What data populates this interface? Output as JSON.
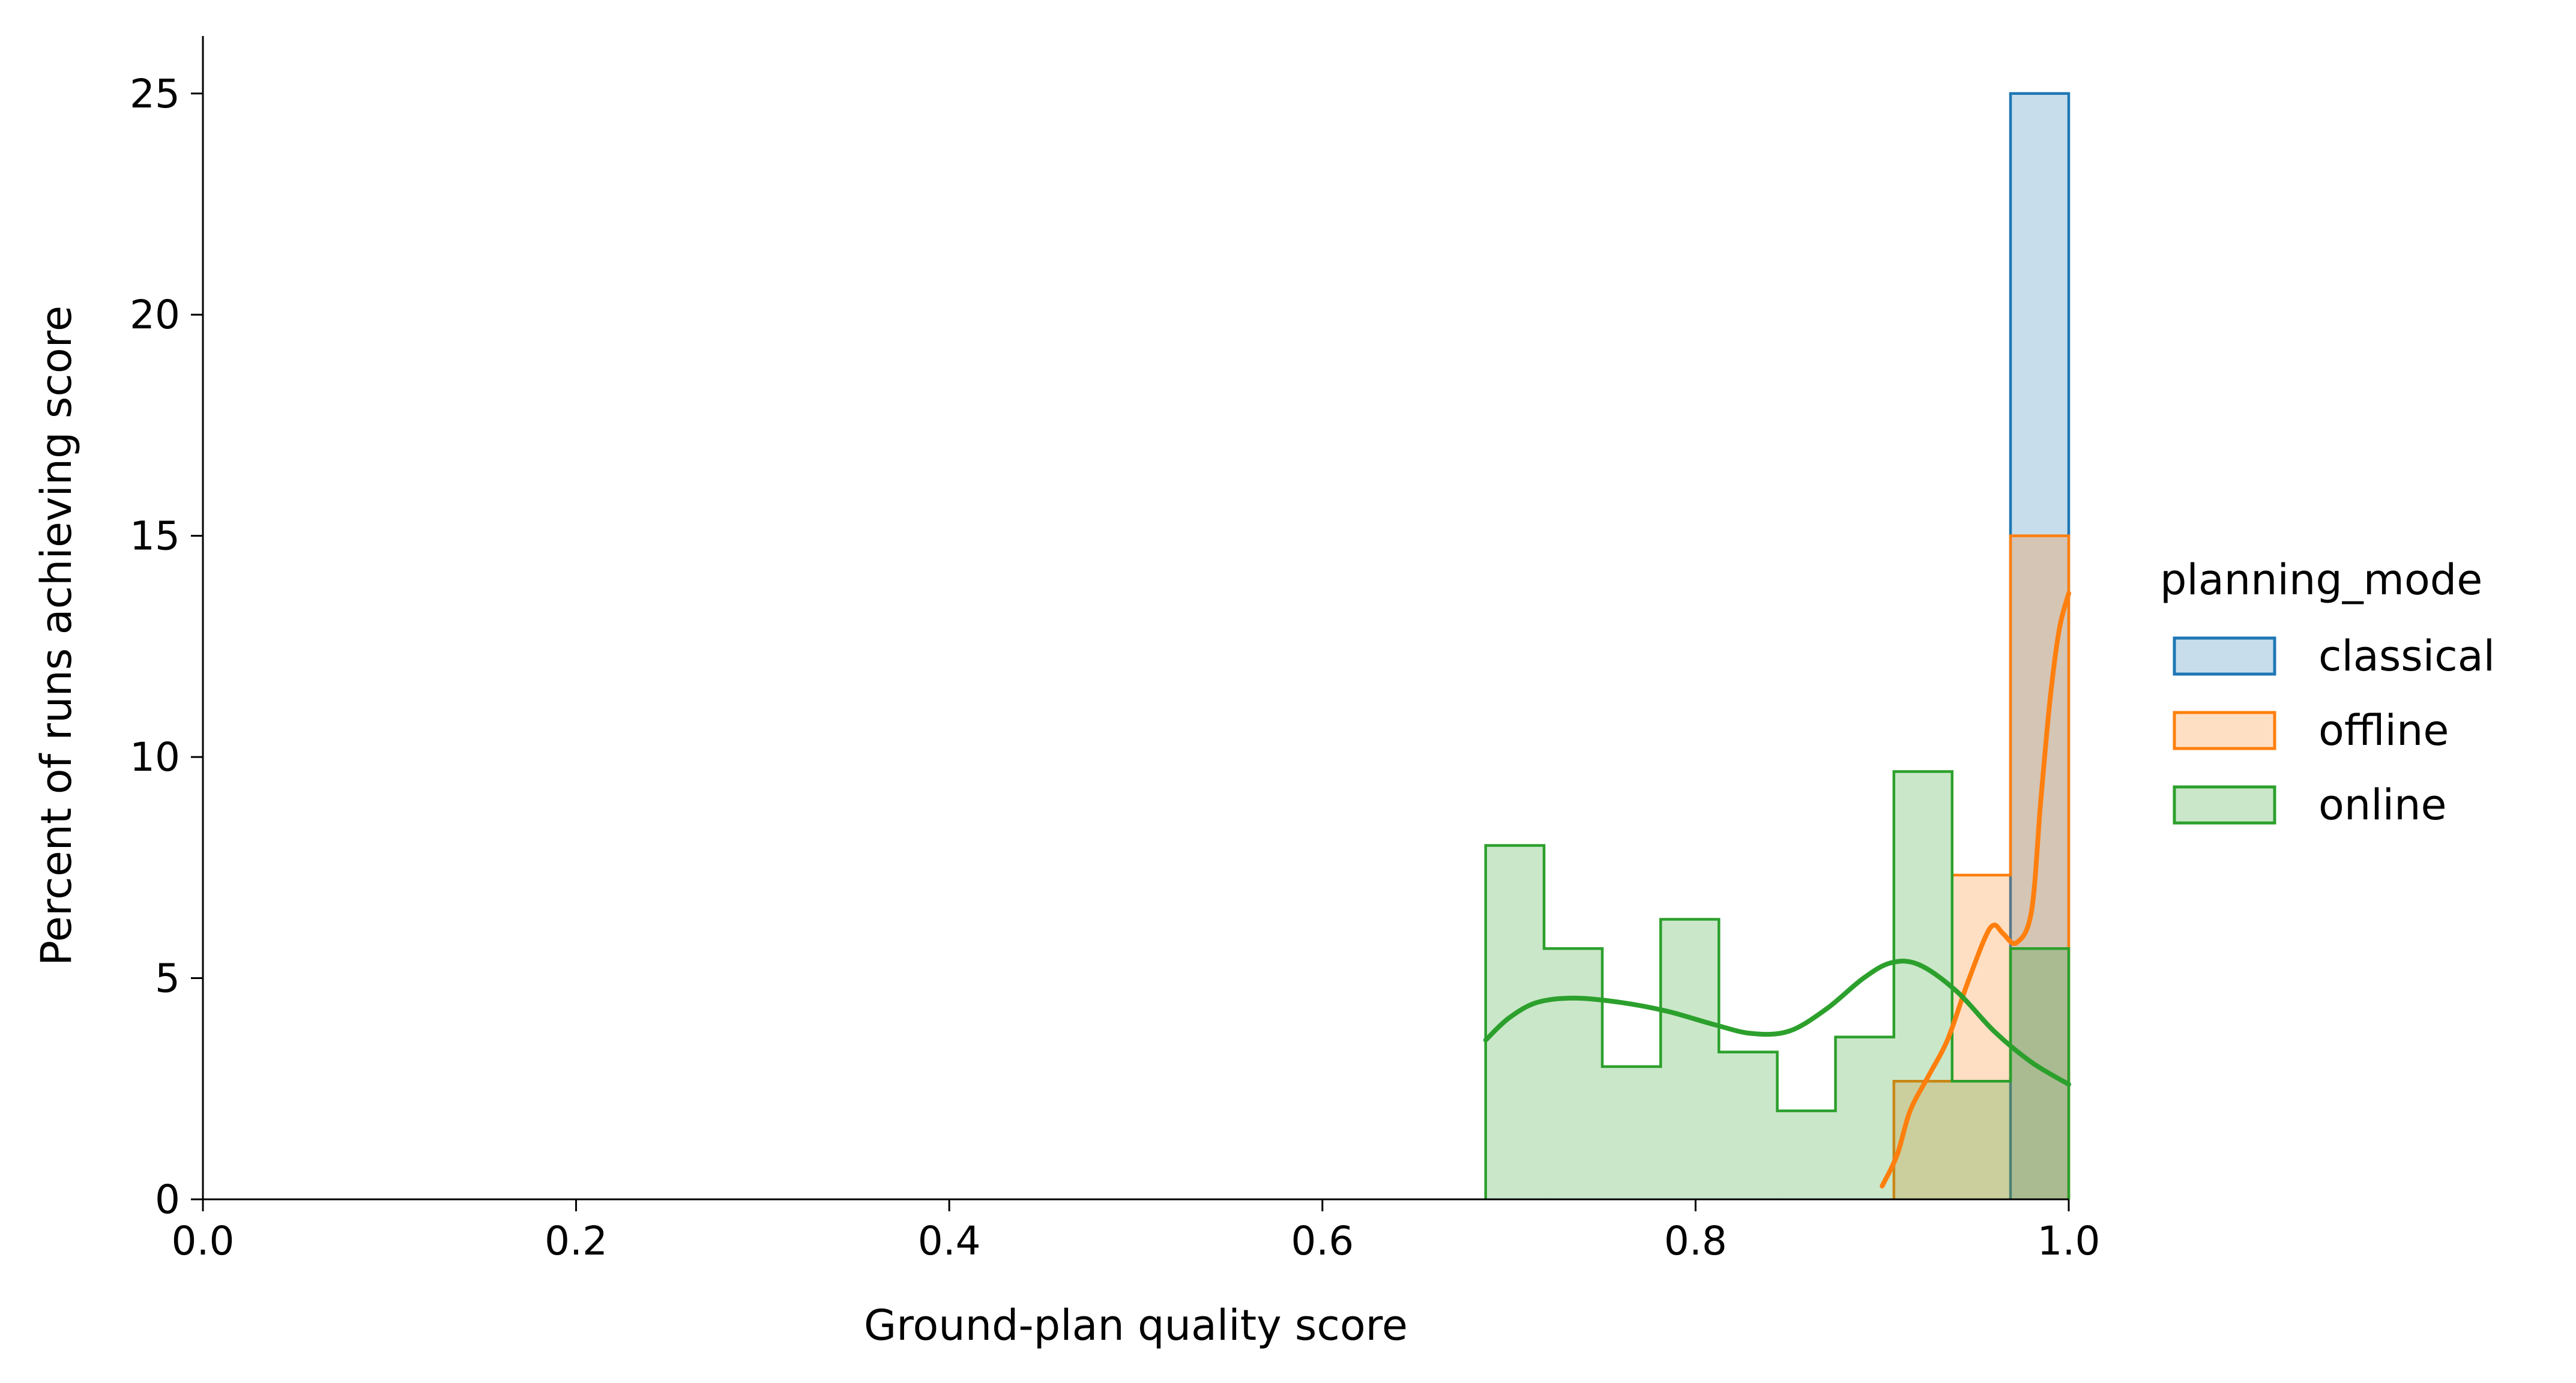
{
  "chart_data": {
    "type": "histogram",
    "xlabel": "Ground-plan quality score",
    "ylabel": "Percent of runs achieving score",
    "xlim": [
      0.0,
      1.0
    ],
    "ylim": [
      0,
      26.3
    ],
    "xticks": [
      "0.0",
      "0.2",
      "0.4",
      "0.6",
      "0.8",
      "1.0"
    ],
    "yticks": [
      "0",
      "5",
      "10",
      "15",
      "20",
      "25"
    ],
    "xtick_values": [
      0.0,
      0.2,
      0.4,
      0.6,
      0.8,
      1.0
    ],
    "ytick_values": [
      0,
      5,
      10,
      15,
      20,
      25
    ],
    "grid": false,
    "legend": {
      "title": "planning_mode",
      "placement": "right, outside plot"
    },
    "series": [
      {
        "name": "classical",
        "color": "#1f77b4",
        "bins": [
          [
            0.9688,
            1.0,
            25.0
          ]
        ],
        "kde": []
      },
      {
        "name": "offline",
        "color": "#ff7f0e",
        "bins": [
          [
            0.9063,
            0.9375,
            2.67
          ],
          [
            0.9375,
            0.9688,
            7.33
          ],
          [
            0.9688,
            1.0,
            15.0
          ]
        ],
        "kde": [
          [
            0.9,
            0.3
          ],
          [
            0.908,
            1.0
          ],
          [
            0.915,
            2.0
          ],
          [
            0.925,
            2.8
          ],
          [
            0.935,
            3.6
          ],
          [
            0.945,
            4.8
          ],
          [
            0.955,
            5.9
          ],
          [
            0.96,
            6.2
          ],
          [
            0.965,
            6.0
          ],
          [
            0.972,
            5.8
          ],
          [
            0.98,
            6.5
          ],
          [
            0.985,
            9.0
          ],
          [
            0.99,
            11.3
          ],
          [
            0.995,
            12.9
          ],
          [
            1.0,
            13.7
          ]
        ]
      },
      {
        "name": "online",
        "color": "#2ca02c",
        "bins": [
          [
            0.6875,
            0.7188,
            8.0
          ],
          [
            0.7188,
            0.75,
            5.67
          ],
          [
            0.75,
            0.7813,
            3.0
          ],
          [
            0.7813,
            0.8125,
            6.33
          ],
          [
            0.8125,
            0.8438,
            3.33
          ],
          [
            0.8438,
            0.875,
            2.0
          ],
          [
            0.875,
            0.9063,
            3.67
          ],
          [
            0.9063,
            0.9375,
            9.67
          ],
          [
            0.9375,
            0.9688,
            2.67
          ],
          [
            0.9688,
            1.0,
            5.67
          ]
        ],
        "kde": [
          [
            0.6875,
            3.6
          ],
          [
            0.7,
            4.1
          ],
          [
            0.715,
            4.45
          ],
          [
            0.735,
            4.55
          ],
          [
            0.76,
            4.45
          ],
          [
            0.785,
            4.25
          ],
          [
            0.81,
            3.95
          ],
          [
            0.83,
            3.75
          ],
          [
            0.85,
            3.8
          ],
          [
            0.87,
            4.3
          ],
          [
            0.89,
            5.0
          ],
          [
            0.905,
            5.35
          ],
          [
            0.92,
            5.3
          ],
          [
            0.94,
            4.7
          ],
          [
            0.96,
            3.8
          ],
          [
            0.98,
            3.1
          ],
          [
            1.0,
            2.6
          ]
        ]
      }
    ]
  }
}
